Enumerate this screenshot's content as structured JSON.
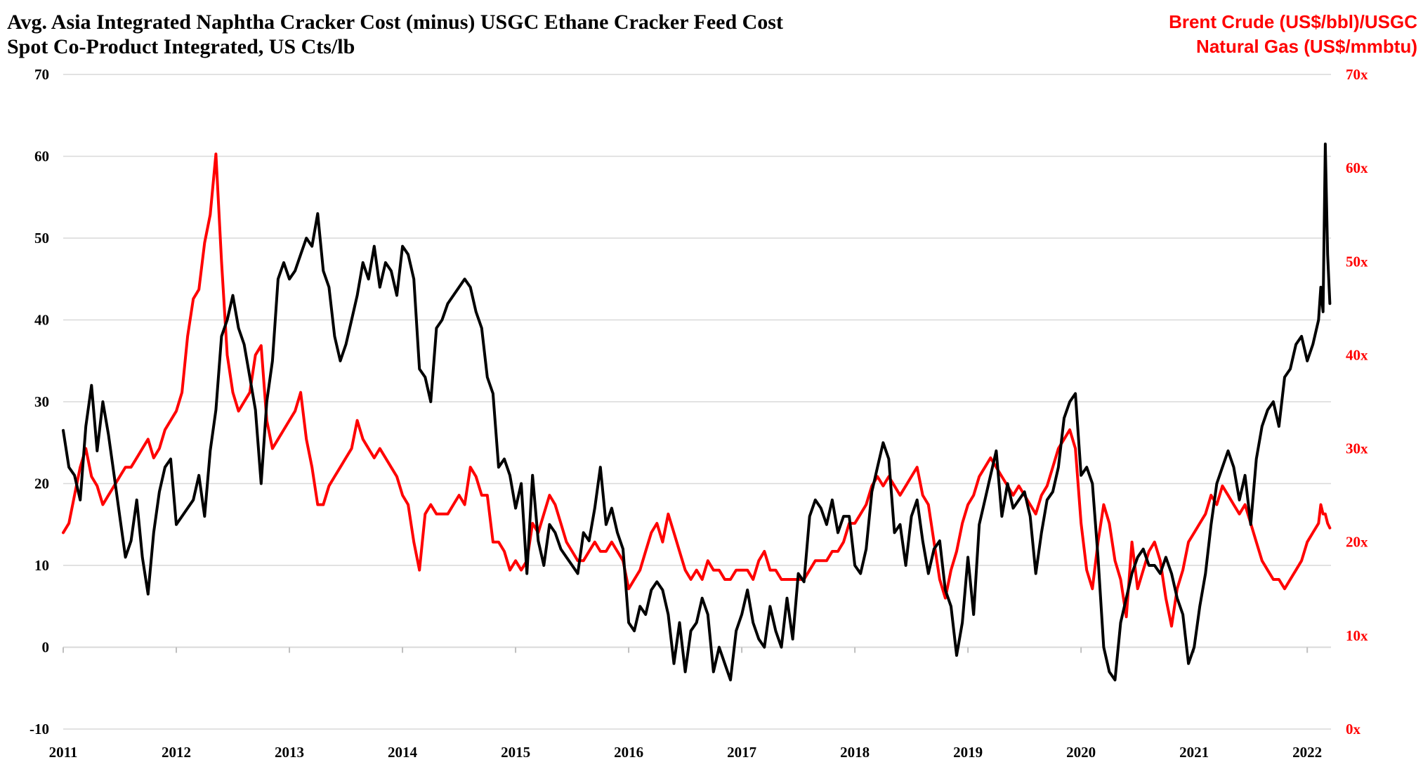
{
  "chart_data": {
    "type": "line",
    "title": "Avg. Asia Integrated Naphtha Cracker Cost (minus) USGC Ethane Cracker Feed Cost",
    "subtitle": "Spot Co-Product Integrated, US Cts/lb",
    "right_axis_title": [
      "Brent Crude (US$/bbl)/USGC",
      "Natural Gas (US$/mmbtu)"
    ],
    "colors": {
      "left_series": "#000000",
      "right_series": "#ff0000",
      "right_axis_text": "#ff0000",
      "grid": "#d9d9d9"
    },
    "grid": "horizontal",
    "y_left": {
      "range": [
        -10,
        70
      ],
      "ticks": [
        "-10",
        "0",
        "10",
        "20",
        "30",
        "40",
        "50",
        "60",
        "70"
      ]
    },
    "y_right": {
      "range": [
        0,
        70
      ],
      "ticks": [
        "0x",
        "10x",
        "20x",
        "30x",
        "40x",
        "50x",
        "60x",
        "70x"
      ]
    },
    "x_axis": {
      "range": [
        2011,
        2022.2
      ],
      "ticks": [
        "2011",
        "2012",
        "2013",
        "2014",
        "2015",
        "2016",
        "2017",
        "2018",
        "2019",
        "2020",
        "2021",
        "2022"
      ]
    },
    "series": [
      {
        "axis": "left",
        "x": [
          2011.0,
          2011.05,
          2011.1,
          2011.15,
          2011.2,
          2011.25,
          2011.3,
          2011.35,
          2011.4,
          2011.45,
          2011.5,
          2011.55,
          2011.6,
          2011.65,
          2011.7,
          2011.75,
          2011.8,
          2011.85,
          2011.9,
          2011.95,
          2012.0,
          2012.05,
          2012.1,
          2012.15,
          2012.2,
          2012.25,
          2012.3,
          2012.35,
          2012.4,
          2012.45,
          2012.5,
          2012.55,
          2012.6,
          2012.65,
          2012.7,
          2012.75,
          2012.8,
          2012.85,
          2012.9,
          2012.95,
          2013.0,
          2013.05,
          2013.1,
          2013.15,
          2013.2,
          2013.25,
          2013.3,
          2013.35,
          2013.4,
          2013.45,
          2013.5,
          2013.55,
          2013.6,
          2013.65,
          2013.7,
          2013.75,
          2013.8,
          2013.85,
          2013.9,
          2013.95,
          2014.0,
          2014.05,
          2014.1,
          2014.15,
          2014.2,
          2014.25,
          2014.3,
          2014.35,
          2014.4,
          2014.45,
          2014.5,
          2014.55,
          2014.6,
          2014.65,
          2014.7,
          2014.75,
          2014.8,
          2014.85,
          2014.9,
          2014.95,
          2015.0,
          2015.05,
          2015.1,
          2015.15,
          2015.2,
          2015.25,
          2015.3,
          2015.35,
          2015.4,
          2015.45,
          2015.5,
          2015.55,
          2015.6,
          2015.65,
          2015.7,
          2015.75,
          2015.8,
          2015.85,
          2015.9,
          2015.95,
          2016.0,
          2016.05,
          2016.1,
          2016.15,
          2016.2,
          2016.25,
          2016.3,
          2016.35,
          2016.4,
          2016.45,
          2016.5,
          2016.55,
          2016.6,
          2016.65,
          2016.7,
          2016.75,
          2016.8,
          2016.85,
          2016.9,
          2016.95,
          2017.0,
          2017.05,
          2017.1,
          2017.15,
          2017.2,
          2017.25,
          2017.3,
          2017.35,
          2017.4,
          2017.45,
          2017.5,
          2017.55,
          2017.6,
          2017.65,
          2017.7,
          2017.75,
          2017.8,
          2017.85,
          2017.9,
          2017.95,
          2018.0,
          2018.05,
          2018.1,
          2018.15,
          2018.2,
          2018.25,
          2018.3,
          2018.35,
          2018.4,
          2018.45,
          2018.5,
          2018.55,
          2018.6,
          2018.65,
          2018.7,
          2018.75,
          2018.8,
          2018.85,
          2018.9,
          2018.95,
          2019.0,
          2019.05,
          2019.1,
          2019.15,
          2019.2,
          2019.25,
          2019.3,
          2019.35,
          2019.4,
          2019.45,
          2019.5,
          2019.55,
          2019.6,
          2019.65,
          2019.7,
          2019.75,
          2019.8,
          2019.85,
          2019.9,
          2019.95,
          2020.0,
          2020.05,
          2020.1,
          2020.15,
          2020.2,
          2020.25,
          2020.3,
          2020.35,
          2020.4,
          2020.45,
          2020.5,
          2020.55,
          2020.6,
          2020.65,
          2020.7,
          2020.75,
          2020.8,
          2020.85,
          2020.9,
          2020.95,
          2021.0,
          2021.05,
          2021.1,
          2021.15,
          2021.2,
          2021.25,
          2021.3,
          2021.35,
          2021.4,
          2021.45,
          2021.5,
          2021.55,
          2021.6,
          2021.65,
          2021.7,
          2021.75,
          2021.8,
          2021.85,
          2021.9,
          2021.95,
          2022.0,
          2022.05,
          2022.1,
          2022.12,
          2022.14,
          2022.16,
          2022.18,
          2022.2
        ],
        "values": [
          26.5,
          22,
          21,
          18,
          27,
          32,
          24,
          30,
          26,
          21,
          16,
          11,
          13,
          18,
          11,
          6.5,
          14,
          19,
          22,
          23,
          15,
          16,
          17,
          18,
          21,
          16,
          24,
          29,
          38,
          40,
          43,
          39,
          37,
          33,
          29,
          20,
          30,
          35,
          45,
          47,
          45,
          46,
          48,
          50,
          49,
          53,
          46,
          44,
          38,
          35,
          37,
          40,
          43,
          47,
          45,
          49,
          44,
          47,
          46,
          43,
          49,
          48,
          45,
          34,
          33,
          30,
          39,
          40,
          42,
          43,
          44,
          45,
          44,
          41,
          39,
          33,
          31,
          22,
          23,
          21,
          17,
          20,
          9,
          21,
          13,
          10,
          15,
          14,
          12,
          11,
          10,
          9,
          14,
          13,
          17,
          22,
          15,
          17,
          14,
          12,
          3,
          2,
          5,
          4,
          7,
          8,
          7,
          4,
          -2,
          3,
          -3,
          2,
          3,
          6,
          4,
          -3,
          0,
          -2,
          -4,
          2,
          4,
          7,
          3,
          1,
          0,
          5,
          2,
          0,
          6,
          1,
          9,
          8,
          16,
          18,
          17,
          15,
          18,
          14,
          16,
          16,
          10,
          9,
          12,
          19,
          22,
          25,
          23,
          14,
          15,
          10,
          16,
          18,
          13,
          9,
          12,
          13,
          7,
          5,
          -1,
          3,
          11,
          4,
          15,
          18,
          21,
          24,
          16,
          20,
          17,
          18,
          19,
          16,
          9,
          14,
          18,
          19,
          22,
          28,
          30,
          31,
          21,
          22,
          20,
          11,
          0,
          -3,
          -4,
          3,
          6,
          9,
          11,
          12,
          10,
          10,
          9,
          11,
          9,
          6,
          4,
          -2,
          0,
          5,
          9,
          15,
          20,
          22,
          24,
          22,
          18,
          21,
          15,
          23,
          27,
          29,
          30,
          27,
          33,
          34,
          37,
          38,
          35,
          37,
          40,
          44,
          41,
          61.5,
          48,
          42
        ]
      },
      {
        "axis": "right",
        "x": [
          2011.0,
          2011.05,
          2011.1,
          2011.15,
          2011.2,
          2011.25,
          2011.3,
          2011.35,
          2011.4,
          2011.45,
          2011.5,
          2011.55,
          2011.6,
          2011.65,
          2011.7,
          2011.75,
          2011.8,
          2011.85,
          2011.9,
          2011.95,
          2012.0,
          2012.05,
          2012.1,
          2012.15,
          2012.2,
          2012.25,
          2012.3,
          2012.35,
          2012.4,
          2012.45,
          2012.5,
          2012.55,
          2012.6,
          2012.65,
          2012.7,
          2012.75,
          2012.8,
          2012.85,
          2012.9,
          2012.95,
          2013.0,
          2013.05,
          2013.1,
          2013.15,
          2013.2,
          2013.25,
          2013.3,
          2013.35,
          2013.4,
          2013.45,
          2013.5,
          2013.55,
          2013.6,
          2013.65,
          2013.7,
          2013.75,
          2013.8,
          2013.85,
          2013.9,
          2013.95,
          2014.0,
          2014.05,
          2014.1,
          2014.15,
          2014.2,
          2014.25,
          2014.3,
          2014.35,
          2014.4,
          2014.45,
          2014.5,
          2014.55,
          2014.6,
          2014.65,
          2014.7,
          2014.75,
          2014.8,
          2014.85,
          2014.9,
          2014.95,
          2015.0,
          2015.05,
          2015.1,
          2015.15,
          2015.2,
          2015.25,
          2015.3,
          2015.35,
          2015.4,
          2015.45,
          2015.5,
          2015.55,
          2015.6,
          2015.65,
          2015.7,
          2015.75,
          2015.8,
          2015.85,
          2015.9,
          2015.95,
          2016.0,
          2016.05,
          2016.1,
          2016.15,
          2016.2,
          2016.25,
          2016.3,
          2016.35,
          2016.4,
          2016.45,
          2016.5,
          2016.55,
          2016.6,
          2016.65,
          2016.7,
          2016.75,
          2016.8,
          2016.85,
          2016.9,
          2016.95,
          2017.0,
          2017.05,
          2017.1,
          2017.15,
          2017.2,
          2017.25,
          2017.3,
          2017.35,
          2017.4,
          2017.45,
          2017.5,
          2017.55,
          2017.6,
          2017.65,
          2017.7,
          2017.75,
          2017.8,
          2017.85,
          2017.9,
          2017.95,
          2018.0,
          2018.05,
          2018.1,
          2018.15,
          2018.2,
          2018.25,
          2018.3,
          2018.35,
          2018.4,
          2018.45,
          2018.5,
          2018.55,
          2018.6,
          2018.65,
          2018.7,
          2018.75,
          2018.8,
          2018.85,
          2018.9,
          2018.95,
          2019.0,
          2019.05,
          2019.1,
          2019.15,
          2019.2,
          2019.25,
          2019.3,
          2019.35,
          2019.4,
          2019.45,
          2019.5,
          2019.55,
          2019.6,
          2019.65,
          2019.7,
          2019.75,
          2019.8,
          2019.85,
          2019.9,
          2019.95,
          2020.0,
          2020.05,
          2020.1,
          2020.15,
          2020.2,
          2020.25,
          2020.3,
          2020.35,
          2020.4,
          2020.45,
          2020.5,
          2020.55,
          2020.6,
          2020.65,
          2020.7,
          2020.75,
          2020.8,
          2020.85,
          2020.9,
          2020.95,
          2021.0,
          2021.05,
          2021.1,
          2021.15,
          2021.2,
          2021.25,
          2021.3,
          2021.35,
          2021.4,
          2021.45,
          2021.5,
          2021.55,
          2021.6,
          2021.65,
          2021.7,
          2021.75,
          2021.8,
          2021.85,
          2021.9,
          2021.95,
          2022.0,
          2022.05,
          2022.1,
          2022.12,
          2022.14,
          2022.16,
          2022.18,
          2022.2
        ],
        "values": [
          21,
          22,
          25,
          28,
          30,
          27,
          26,
          24,
          25,
          26,
          27,
          28,
          28,
          29,
          30,
          31,
          29,
          30,
          32,
          33,
          34,
          36,
          42,
          46,
          47,
          52,
          55,
          61.5,
          50,
          40,
          36,
          34,
          35,
          36,
          40,
          41,
          33,
          30,
          31,
          32,
          33,
          34,
          36,
          31,
          28,
          24,
          24,
          26,
          27,
          28,
          29,
          30,
          33,
          31,
          30,
          29,
          30,
          29,
          28,
          27,
          25,
          24,
          20,
          17,
          23,
          24,
          23,
          23,
          23,
          24,
          25,
          24,
          28,
          27,
          25,
          25,
          20,
          20,
          19,
          17,
          18,
          17,
          18,
          22,
          21,
          23,
          25,
          24,
          22,
          20,
          19,
          18,
          18,
          19,
          20,
          19,
          19,
          20,
          19,
          18,
          15,
          16,
          17,
          19,
          21,
          22,
          20,
          23,
          21,
          19,
          17,
          16,
          17,
          16,
          18,
          17,
          17,
          16,
          16,
          17,
          17,
          17,
          16,
          18,
          19,
          17,
          17,
          16,
          16,
          16,
          16,
          16,
          17,
          18,
          18,
          18,
          19,
          19,
          20,
          22,
          22,
          23,
          24,
          26,
          27,
          26,
          27,
          26,
          25,
          26,
          27,
          28,
          25,
          24,
          20,
          16,
          14,
          17,
          19,
          22,
          24,
          25,
          27,
          28,
          29,
          28,
          27,
          26,
          25,
          26,
          25,
          24,
          23,
          25,
          26,
          28,
          30,
          31,
          32,
          30,
          22,
          17,
          15,
          20,
          24,
          22,
          18,
          16,
          12,
          20,
          15,
          17,
          19,
          20,
          18,
          14,
          11,
          15,
          17,
          20,
          21,
          22,
          23,
          25,
          24,
          26,
          25,
          24,
          23,
          24,
          22,
          20,
          18,
          17,
          16,
          16,
          15,
          16,
          17,
          18,
          20,
          21,
          22,
          24,
          23,
          23,
          22,
          21.5
        ]
      }
    ]
  }
}
